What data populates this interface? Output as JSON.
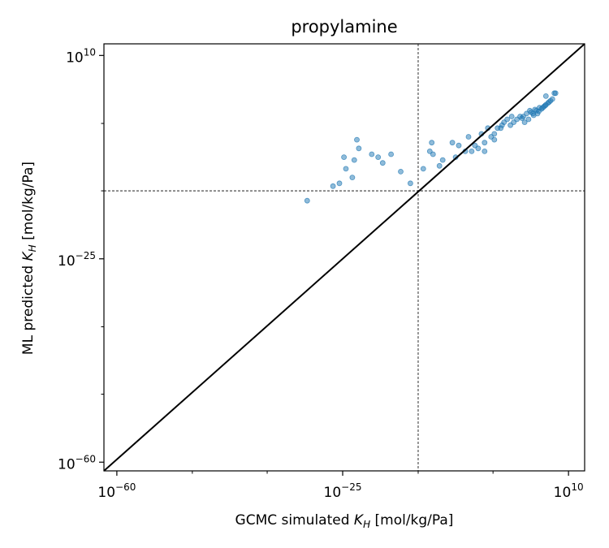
{
  "chart_data": {
    "type": "scatter",
    "title": "propylamine",
    "xlabel": {
      "prefix": "GCMC simulated ",
      "sym": "K",
      "sub": "H",
      "suffix": " [mol/kg/Pa]"
    },
    "ylabel": {
      "prefix": "ML predicted ",
      "sym": "K",
      "sub": "H",
      "suffix": " [mol/kg/Pa]"
    },
    "x_scale": "log",
    "y_scale": "log",
    "xlim_exp": [
      -62,
      12.5
    ],
    "ylim_exp": [
      -61.5,
      12
    ],
    "major_ticks_x": [
      {
        "exp": -60,
        "base": "10",
        "sup": "−60"
      },
      {
        "exp": -25,
        "base": "10",
        "sup": "−25"
      },
      {
        "exp": 10,
        "base": "10",
        "sup": "10"
      }
    ],
    "major_ticks_y": [
      {
        "exp": -60,
        "base": "10",
        "sup": "−60"
      },
      {
        "exp": -25,
        "base": "10",
        "sup": "−25"
      },
      {
        "exp": 10,
        "base": "10",
        "sup": "10"
      }
    ],
    "minor_ticks_exp": [
      -48.3,
      -36.7,
      -13.3,
      -1.7
    ],
    "reference_line": "y = x (parity)",
    "vline_exp": -13.3,
    "hline_exp": -13.3,
    "grid": false,
    "point_color": "#1f77b4",
    "point_alpha": 0.5,
    "x_exp": [
      -30.5,
      -26.5,
      -25.5,
      -23.5,
      -24.5,
      -23.2,
      -22.5,
      -24.8,
      -19.5,
      -20.5,
      -18.8,
      -22.8,
      -17.5,
      -16.0,
      -14.5,
      -12.5,
      -11.5,
      -11.0,
      -11.2,
      -10.0,
      -9.5,
      -7.5,
      -8.0,
      -7.0,
      -6.0,
      -5.5,
      -4.5,
      -3.5,
      -3.0,
      -5.0,
      -4.0,
      -3.0,
      -2.0,
      -2.5,
      -1.5,
      -1.0,
      -1.5,
      -0.5,
      0.0,
      0.5,
      -0.3,
      1.0,
      1.5,
      2.0,
      2.5,
      3.0,
      1.2,
      3.5,
      4.0,
      4.5,
      5.0,
      5.5,
      3.8,
      4.2,
      4.6,
      6.0,
      6.5,
      7.0,
      7.5,
      5.2,
      5.8,
      6.2,
      6.8,
      3.2,
      2.8,
      5.4,
      7.2,
      6.4,
      8.0,
      6.5,
      4.8,
      7.8
    ],
    "y_exp": [
      -15.0,
      -12.5,
      -12.0,
      -11.0,
      -9.5,
      -8.0,
      -6.0,
      -7.5,
      -7.5,
      -7.0,
      -8.5,
      -4.5,
      -7.0,
      -10.0,
      -12.0,
      -9.5,
      -6.5,
      -7.0,
      -5.0,
      -9.0,
      -8.0,
      -7.5,
      -5.0,
      -5.5,
      -6.5,
      -4.0,
      -5.5,
      -3.5,
      -5.0,
      -6.5,
      -6.0,
      -6.5,
      -4.0,
      -2.5,
      -3.5,
      -2.5,
      -4.5,
      -2.5,
      -1.5,
      -1.0,
      -2.0,
      -2.0,
      -1.5,
      -1.0,
      -0.5,
      -0.5,
      -0.5,
      0.0,
      0.5,
      0.0,
      0.5,
      1.0,
      -1.0,
      0.2,
      -0.3,
      1.0,
      1.5,
      2.0,
      2.5,
      0.0,
      0.8,
      1.2,
      1.8,
      -1.5,
      -0.8,
      0.4,
      2.2,
      1.4,
      3.5,
      3.0,
      0.7,
      3.5
    ]
  }
}
